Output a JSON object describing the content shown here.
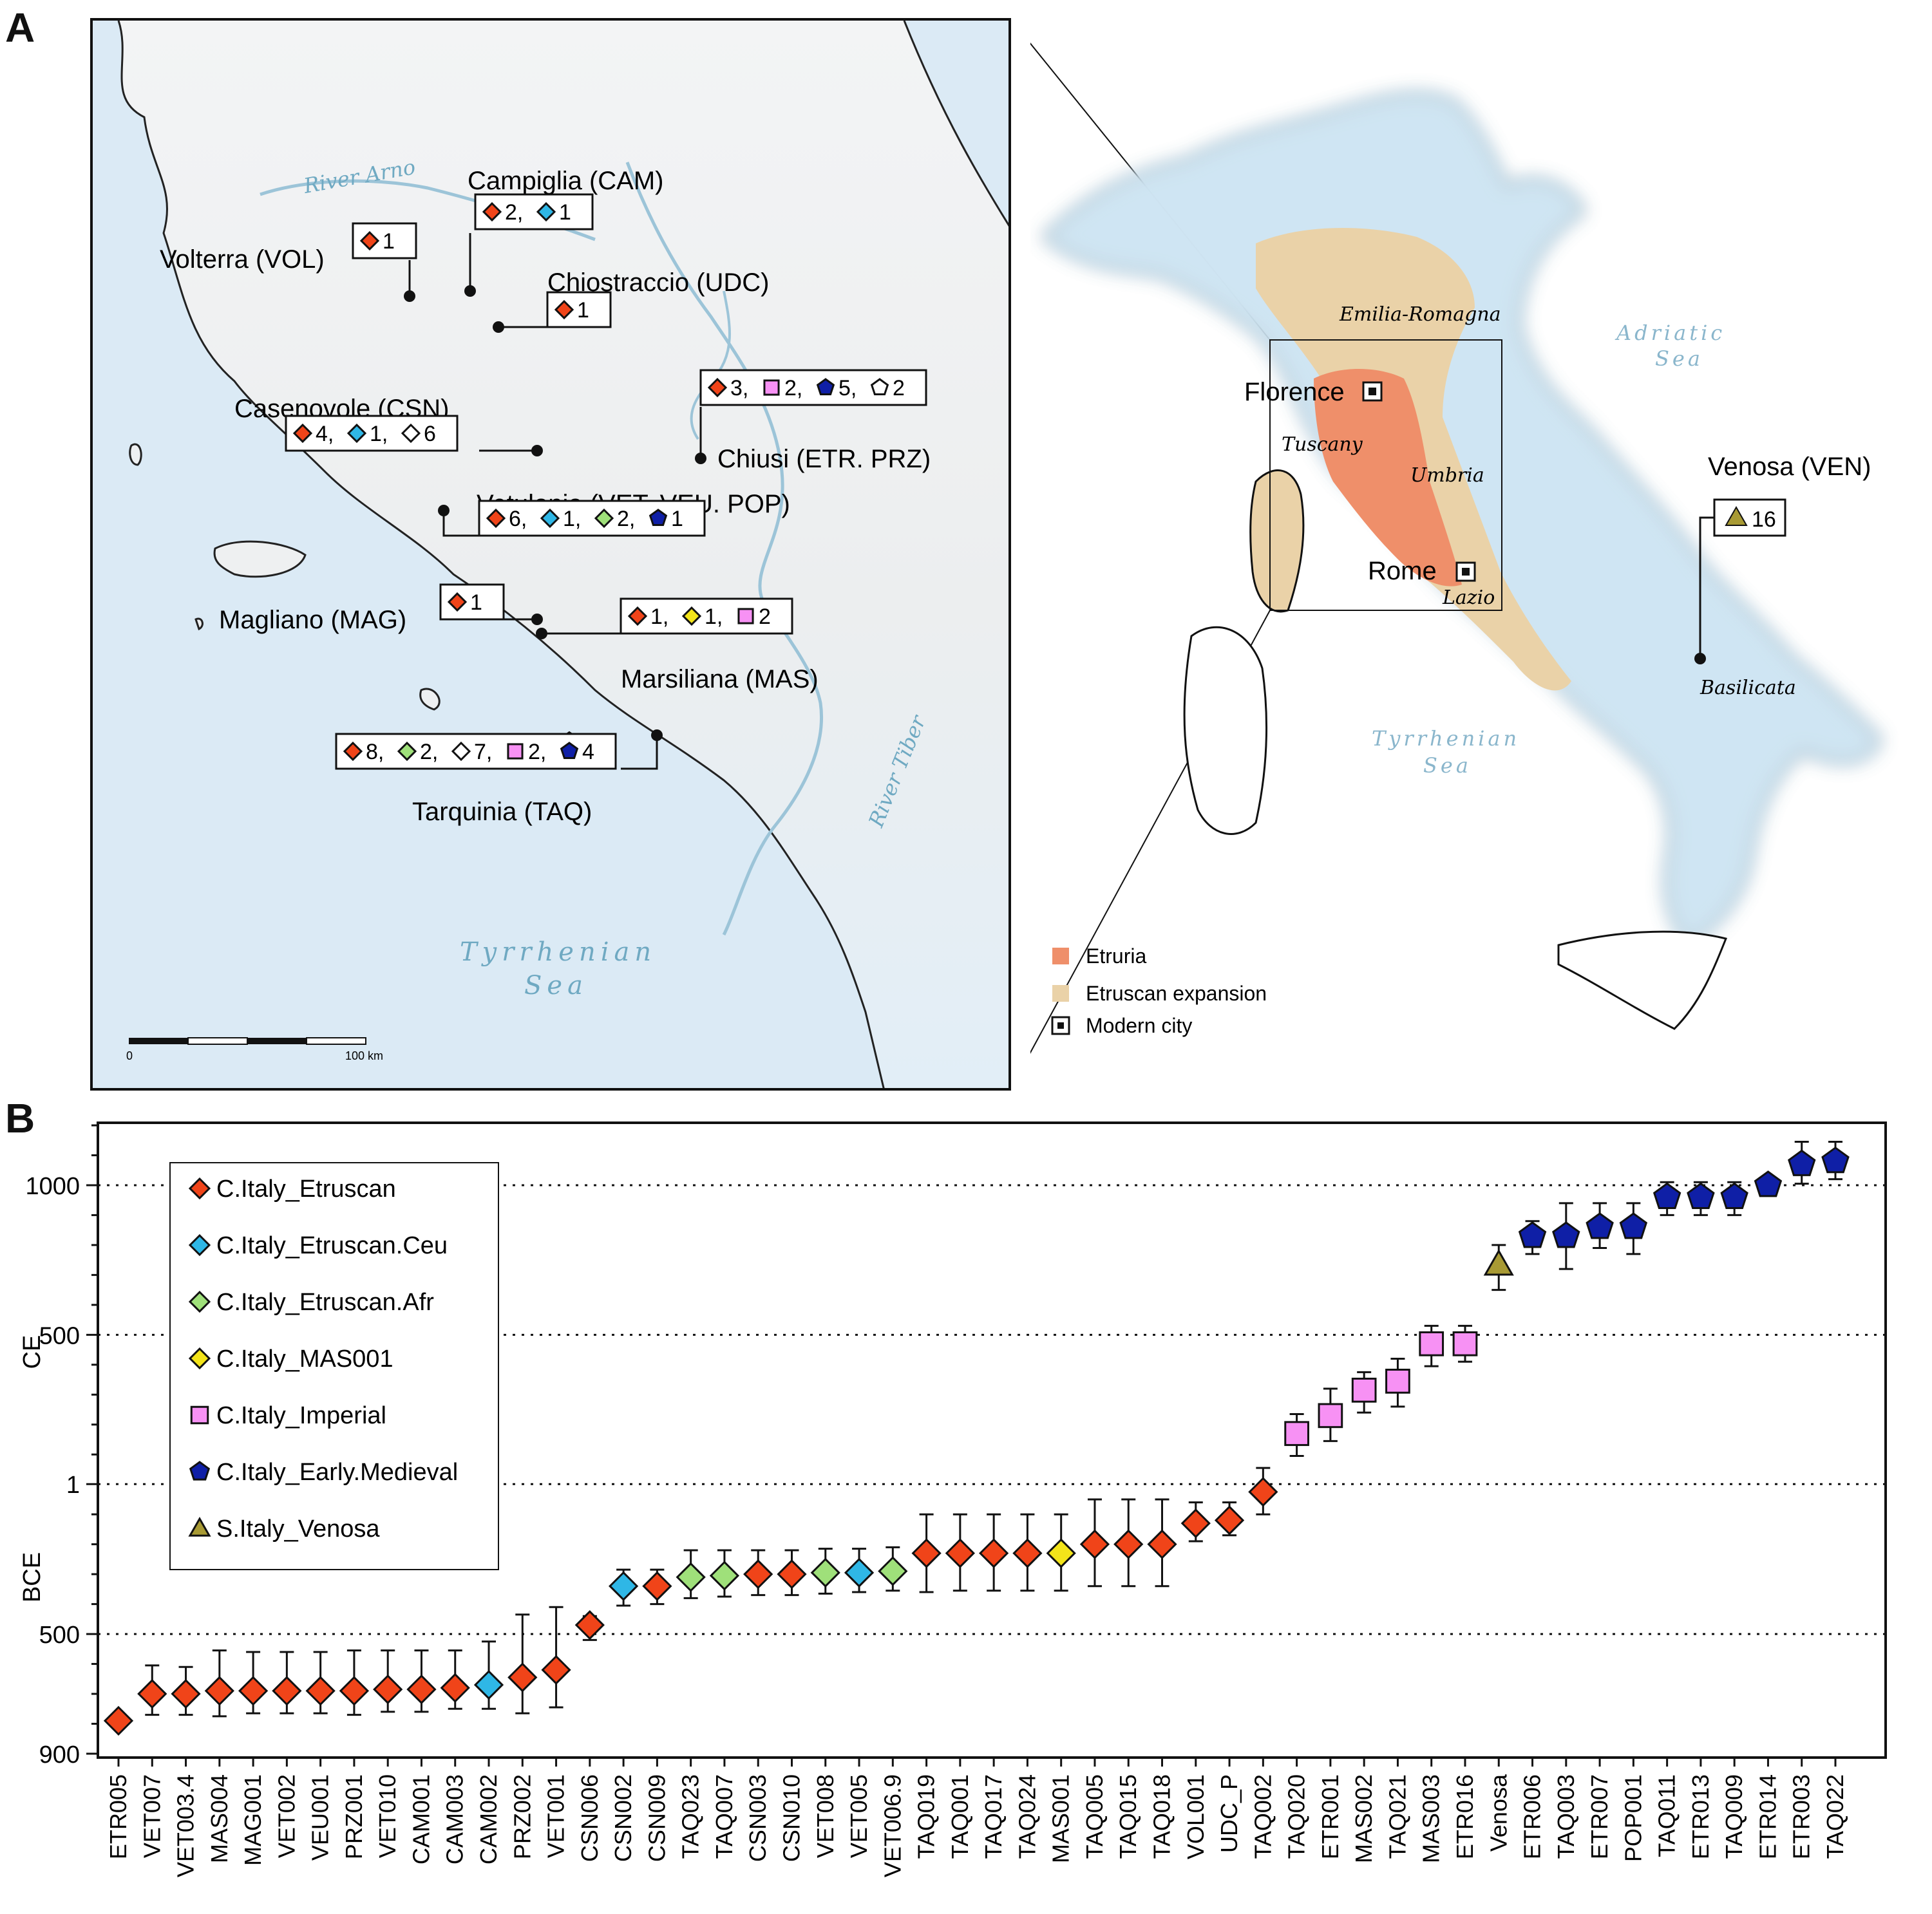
{
  "panel_labels": {
    "a": "A",
    "b": "B"
  },
  "colors": {
    "etruscan": "#f04419",
    "etruscan_ceu": "#2fb7e6",
    "etruscan_afr": "#9fe07a",
    "mas001": "#f3e41a",
    "imperial": "#f791f4",
    "early_medieval": "#0f1fa6",
    "venosa": "#a89a34",
    "etruria": "#ef8f6a",
    "expansion": "#ead2a8"
  },
  "map_inset": {
    "sites": [
      {
        "name": "Volterra (VOL)",
        "counts": [
          {
            "g": "etruscan",
            "n": "1"
          }
        ]
      },
      {
        "name": "Campiglia (CAM)",
        "counts": [
          {
            "g": "etruscan",
            "n": "2,"
          },
          {
            "g": "etruscan_ceu",
            "n": "1"
          }
        ]
      },
      {
        "name": "Chiostraccio (UDC)",
        "counts": [
          {
            "g": "etruscan",
            "n": "1"
          }
        ]
      },
      {
        "name": "Casenovole (CSN)",
        "counts": [
          {
            "g": "etruscan",
            "n": "4,"
          },
          {
            "g": "etruscan_ceu",
            "n": "1,"
          },
          {
            "g": "hollow_diamond",
            "n": "6"
          }
        ]
      },
      {
        "name": "Chiusi (ETR. PRZ)",
        "counts": [
          {
            "g": "etruscan",
            "n": "3,"
          },
          {
            "g": "imperial",
            "n": "2,"
          },
          {
            "g": "early_medieval",
            "n": "5,"
          },
          {
            "g": "hollow_pentagon",
            "n": "2"
          }
        ]
      },
      {
        "name": "Vetulonia (VET. VEU. POP)",
        "counts": [
          {
            "g": "etruscan",
            "n": "6,"
          },
          {
            "g": "etruscan_ceu",
            "n": "1,"
          },
          {
            "g": "etruscan_afr",
            "n": "2,"
          },
          {
            "g": "early_medieval",
            "n": "1"
          }
        ]
      },
      {
        "name": "Magliano (MAG)",
        "counts": [
          {
            "g": "etruscan",
            "n": "1"
          }
        ]
      },
      {
        "name": "Marsiliana (MAS)",
        "counts": [
          {
            "g": "etruscan",
            "n": "1,"
          },
          {
            "g": "mas001",
            "n": "1,"
          },
          {
            "g": "imperial",
            "n": "2"
          }
        ]
      },
      {
        "name": "Tarquinia (TAQ)",
        "counts": [
          {
            "g": "etruscan",
            "n": "8,"
          },
          {
            "g": "etruscan_afr",
            "n": "2,"
          },
          {
            "g": "hollow_diamond",
            "n": "7,"
          },
          {
            "g": "imperial",
            "n": "2,"
          },
          {
            "g": "early_medieval",
            "n": "4"
          }
        ]
      }
    ],
    "river_arno": "River Arno",
    "river_tiber": "River Tiber",
    "sea_line1": "Tyrrhenian",
    "sea_line2": "Sea",
    "scale_start": "0",
    "scale_end": "100 km"
  },
  "map_italy": {
    "florence": "Florence",
    "rome": "Rome",
    "venosa_site": "Venosa (VEN)",
    "venosa_count": "16",
    "regions": {
      "emilia": "Emilia-Romagna",
      "tuscany": "Tuscany",
      "umbria": "Umbria",
      "lazio": "Lazio",
      "basilicata": "Basilicata"
    },
    "adriatic_line1": "Adriatic",
    "adriatic_line2": "Sea",
    "tyrrhenian_line1": "Tyrrhenian",
    "tyrrhenian_line2": "Sea",
    "legend": {
      "etruria": "Etruria",
      "expansion": "Etruscan expansion",
      "city": "Modern city"
    }
  },
  "chart_data": {
    "type": "scatter",
    "title": "",
    "ylabel_upper": "CE",
    "ylabel_lower": "BCE",
    "y_unit": "year (negative = BCE)",
    "ylim": [
      -900,
      1200
    ],
    "yticks": [
      {
        "value": -900,
        "label": "900"
      },
      {
        "value": -500,
        "label": "500"
      },
      {
        "value": 1,
        "label": "1"
      },
      {
        "value": 500,
        "label": "500"
      },
      {
        "value": 1000,
        "label": "1000"
      }
    ],
    "gridlines": [
      -500,
      1,
      500,
      1000
    ],
    "legend": [
      {
        "group": "etruscan",
        "label": "C.Italy_Etruscan",
        "marker": "diamond"
      },
      {
        "group": "etruscan_ceu",
        "label": "C.Italy_Etruscan.Ceu",
        "marker": "diamond"
      },
      {
        "group": "etruscan_afr",
        "label": "C.Italy_Etruscan.Afr",
        "marker": "diamond"
      },
      {
        "group": "mas001",
        "label": "C.Italy_MAS001",
        "marker": "diamond"
      },
      {
        "group": "imperial",
        "label": "C.Italy_Imperial",
        "marker": "square"
      },
      {
        "group": "early_medieval",
        "label": "C.Italy_Early.Medieval",
        "marker": "pentagon"
      },
      {
        "group": "venosa",
        "label": "S.Italy_Venosa",
        "marker": "triangle"
      }
    ],
    "samples": [
      {
        "id": "ETR005",
        "group": "etruscan",
        "y": -790,
        "lo": -790,
        "hi": -790
      },
      {
        "id": "VET007",
        "group": "etruscan",
        "y": -700,
        "lo": -770,
        "hi": -605
      },
      {
        "id": "VET003.4",
        "group": "etruscan",
        "y": -700,
        "lo": -770,
        "hi": -610
      },
      {
        "id": "MAS004",
        "group": "etruscan",
        "y": -690,
        "lo": -775,
        "hi": -555
      },
      {
        "id": "MAG001",
        "group": "etruscan",
        "y": -690,
        "lo": -765,
        "hi": -560
      },
      {
        "id": "VET002",
        "group": "etruscan",
        "y": -690,
        "lo": -765,
        "hi": -560
      },
      {
        "id": "VEU001",
        "group": "etruscan",
        "y": -690,
        "lo": -765,
        "hi": -560
      },
      {
        "id": "PRZ001",
        "group": "etruscan",
        "y": -690,
        "lo": -770,
        "hi": -555
      },
      {
        "id": "VET010",
        "group": "etruscan",
        "y": -685,
        "lo": -760,
        "hi": -555
      },
      {
        "id": "CAM001",
        "group": "etruscan",
        "y": -685,
        "lo": -760,
        "hi": -555
      },
      {
        "id": "CAM003",
        "group": "etruscan",
        "y": -680,
        "lo": -750,
        "hi": -555
      },
      {
        "id": "CAM002",
        "group": "etruscan_ceu",
        "y": -670,
        "lo": -750,
        "hi": -525
      },
      {
        "id": "PRZ002",
        "group": "etruscan",
        "y": -645,
        "lo": -765,
        "hi": -435
      },
      {
        "id": "VET001",
        "group": "etruscan",
        "y": -620,
        "lo": -745,
        "hi": -410
      },
      {
        "id": "CSN006",
        "group": "etruscan",
        "y": -470,
        "lo": -520,
        "hi": -440
      },
      {
        "id": "CSN002",
        "group": "etruscan_ceu",
        "y": -340,
        "lo": -405,
        "hi": -285
      },
      {
        "id": "CSN009",
        "group": "etruscan",
        "y": -340,
        "lo": -400,
        "hi": -285
      },
      {
        "id": "TAQ023",
        "group": "etruscan_afr",
        "y": -310,
        "lo": -380,
        "hi": -220
      },
      {
        "id": "TAQ007",
        "group": "etruscan_afr",
        "y": -305,
        "lo": -375,
        "hi": -220
      },
      {
        "id": "CSN003",
        "group": "etruscan",
        "y": -300,
        "lo": -370,
        "hi": -220
      },
      {
        "id": "CSN010",
        "group": "etruscan",
        "y": -300,
        "lo": -370,
        "hi": -220
      },
      {
        "id": "VET008",
        "group": "etruscan_afr",
        "y": -295,
        "lo": -365,
        "hi": -215
      },
      {
        "id": "VET005",
        "group": "etruscan_ceu",
        "y": -295,
        "lo": -360,
        "hi": -215
      },
      {
        "id": "VET006.9",
        "group": "etruscan_afr",
        "y": -290,
        "lo": -355,
        "hi": -210
      },
      {
        "id": "TAQ019",
        "group": "etruscan",
        "y": -230,
        "lo": -360,
        "hi": -100
      },
      {
        "id": "TAQ001",
        "group": "etruscan",
        "y": -230,
        "lo": -355,
        "hi": -100
      },
      {
        "id": "TAQ017",
        "group": "etruscan",
        "y": -230,
        "lo": -355,
        "hi": -100
      },
      {
        "id": "TAQ024",
        "group": "etruscan",
        "y": -230,
        "lo": -355,
        "hi": -100
      },
      {
        "id": "MAS001",
        "group": "mas001",
        "y": -230,
        "lo": -355,
        "hi": -100
      },
      {
        "id": "TAQ005",
        "group": "etruscan",
        "y": -200,
        "lo": -340,
        "hi": -50
      },
      {
        "id": "TAQ015",
        "group": "etruscan",
        "y": -200,
        "lo": -340,
        "hi": -50
      },
      {
        "id": "TAQ018",
        "group": "etruscan",
        "y": -200,
        "lo": -340,
        "hi": -50
      },
      {
        "id": "VOL001",
        "group": "etruscan",
        "y": -130,
        "lo": -190,
        "hi": -60
      },
      {
        "id": "UDC_P",
        "group": "etruscan",
        "y": -120,
        "lo": -170,
        "hi": -60
      },
      {
        "id": "TAQ002",
        "group": "etruscan",
        "y": -25,
        "lo": -100,
        "hi": 55
      },
      {
        "id": "TAQ020",
        "group": "imperial",
        "y": 170,
        "lo": 95,
        "hi": 235
      },
      {
        "id": "ETR001",
        "group": "imperial",
        "y": 230,
        "lo": 145,
        "hi": 320
      },
      {
        "id": "MAS002",
        "group": "imperial",
        "y": 315,
        "lo": 240,
        "hi": 375
      },
      {
        "id": "TAQ021",
        "group": "imperial",
        "y": 345,
        "lo": 260,
        "hi": 420
      },
      {
        "id": "MAS003",
        "group": "imperial",
        "y": 470,
        "lo": 395,
        "hi": 530
      },
      {
        "id": "ETR016",
        "group": "imperial",
        "y": 470,
        "lo": 410,
        "hi": 530
      },
      {
        "id": "Venosa",
        "group": "venosa",
        "y": 735,
        "lo": 650,
        "hi": 800
      },
      {
        "id": "ETR006",
        "group": "early_medieval",
        "y": 830,
        "lo": 770,
        "hi": 880
      },
      {
        "id": "TAQ003",
        "group": "early_medieval",
        "y": 830,
        "lo": 720,
        "hi": 940
      },
      {
        "id": "ETR007",
        "group": "early_medieval",
        "y": 860,
        "lo": 790,
        "hi": 940
      },
      {
        "id": "POP001",
        "group": "early_medieval",
        "y": 860,
        "lo": 770,
        "hi": 940
      },
      {
        "id": "TAQ011",
        "group": "early_medieval",
        "y": 960,
        "lo": 900,
        "hi": 1010
      },
      {
        "id": "ETR013",
        "group": "early_medieval",
        "y": 960,
        "lo": 900,
        "hi": 1010
      },
      {
        "id": "TAQ009",
        "group": "early_medieval",
        "y": 960,
        "lo": 900,
        "hi": 1010
      },
      {
        "id": "ETR014",
        "group": "early_medieval",
        "y": 1000,
        "lo": 1000,
        "hi": 1000
      },
      {
        "id": "ETR003",
        "group": "early_medieval",
        "y": 1070,
        "lo": 1005,
        "hi": 1145
      },
      {
        "id": "TAQ022",
        "group": "early_medieval",
        "y": 1080,
        "lo": 1020,
        "hi": 1145
      }
    ]
  }
}
